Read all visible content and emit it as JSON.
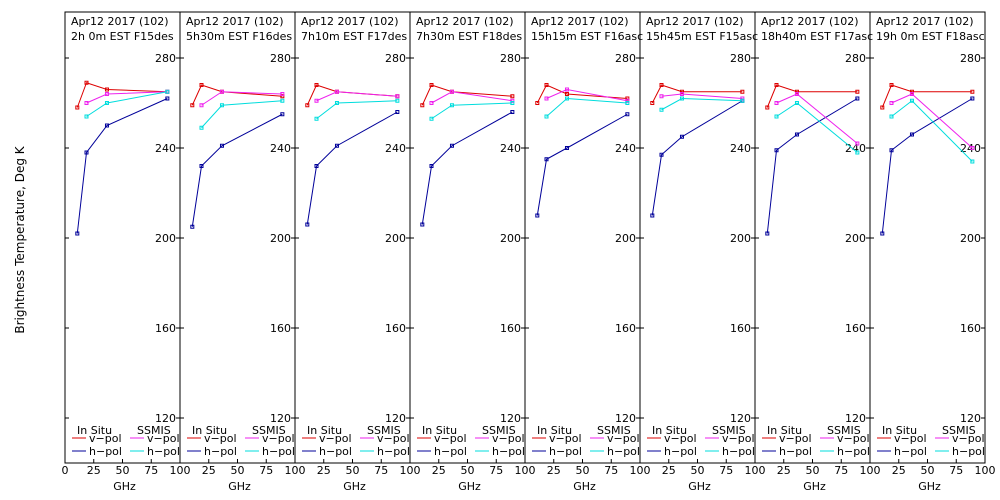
{
  "figure": {
    "ylabel": "Brightness Temperature, Deg K",
    "xlabel": "GHz"
  },
  "legend": {
    "in_situ": "In Situ",
    "ssmis": "SSMIS",
    "v_pol": "v−pol",
    "h_pol": "h−pol"
  },
  "colors": {
    "insitu_v": "#dd0000",
    "insitu_h": "#000099",
    "ssmis_v": "#ee22ee",
    "ssmis_h": "#00dddd"
  },
  "chart_data": [
    {
      "type": "line",
      "title": "Apr12 2017 (102)",
      "subtitle": "2h 0m  EST F15des",
      "xlabel": "GHz",
      "ylabel": "Brightness Temperature, Deg K",
      "xlim": [
        0,
        100
      ],
      "ylim": [
        110,
        290
      ],
      "xticks": [
        "0",
        "25",
        "50",
        "75",
        "100"
      ],
      "yticks": [
        "120",
        "160",
        "200",
        "240",
        "280"
      ],
      "x": [
        10.7,
        18.7,
        36.5,
        89
      ],
      "series": [
        {
          "name": "v-pol",
          "group": "In Situ",
          "values": [
            258,
            269,
            266,
            265
          ]
        },
        {
          "name": "h-pol",
          "group": "In Situ",
          "values": [
            202,
            238,
            250,
            262
          ]
        },
        {
          "name": "v-pol",
          "group": "SSMIS",
          "values": [
            null,
            260,
            264,
            265
          ]
        },
        {
          "name": "h-pol",
          "group": "SSMIS",
          "values": [
            null,
            254,
            260,
            265
          ]
        }
      ]
    },
    {
      "type": "line",
      "title": "Apr12 2017 (102)",
      "subtitle": "5h30m  EST F16des",
      "xlabel": "GHz",
      "ylabel": "Brightness Temperature, Deg K",
      "xlim": [
        0,
        100
      ],
      "ylim": [
        110,
        290
      ],
      "xticks": [
        "25",
        "50",
        "75",
        "100"
      ],
      "yticks": [
        "120",
        "160",
        "200",
        "240",
        "280"
      ],
      "x": [
        10.7,
        18.7,
        36.5,
        89
      ],
      "series": [
        {
          "name": "v-pol",
          "group": "In Situ",
          "values": [
            259,
            268,
            265,
            263
          ]
        },
        {
          "name": "h-pol",
          "group": "In Situ",
          "values": [
            205,
            232,
            241,
            255
          ]
        },
        {
          "name": "v-pol",
          "group": "SSMIS",
          "values": [
            null,
            259,
            265,
            264
          ]
        },
        {
          "name": "h-pol",
          "group": "SSMIS",
          "values": [
            null,
            249,
            259,
            261
          ]
        }
      ]
    },
    {
      "type": "line",
      "title": "Apr12 2017 (102)",
      "subtitle": "7h10m  EST F17des",
      "xlabel": "GHz",
      "ylabel": "Brightness Temperature, Deg K",
      "xlim": [
        0,
        100
      ],
      "ylim": [
        110,
        290
      ],
      "xticks": [
        "25",
        "50",
        "75",
        "100"
      ],
      "yticks": [
        "120",
        "160",
        "200",
        "240",
        "280"
      ],
      "x": [
        10.7,
        18.7,
        36.5,
        89
      ],
      "series": [
        {
          "name": "v-pol",
          "group": "In Situ",
          "values": [
            259,
            268,
            265,
            263
          ]
        },
        {
          "name": "h-pol",
          "group": "In Situ",
          "values": [
            206,
            232,
            241,
            256
          ]
        },
        {
          "name": "v-pol",
          "group": "SSMIS",
          "values": [
            null,
            261,
            265,
            263
          ]
        },
        {
          "name": "h-pol",
          "group": "SSMIS",
          "values": [
            null,
            253,
            260,
            261
          ]
        }
      ]
    },
    {
      "type": "line",
      "title": "Apr12 2017 (102)",
      "subtitle": "7h30m  EST F18des",
      "xlabel": "GHz",
      "ylabel": "Brightness Temperature, Deg K",
      "xlim": [
        0,
        100
      ],
      "ylim": [
        110,
        290
      ],
      "xticks": [
        "25",
        "50",
        "75",
        "100"
      ],
      "yticks": [
        "120",
        "160",
        "200",
        "240",
        "280"
      ],
      "x": [
        10.7,
        18.7,
        36.5,
        89
      ],
      "series": [
        {
          "name": "v-pol",
          "group": "In Situ",
          "values": [
            259,
            268,
            265,
            263
          ]
        },
        {
          "name": "h-pol",
          "group": "In Situ",
          "values": [
            206,
            232,
            241,
            256
          ]
        },
        {
          "name": "v-pol",
          "group": "SSMIS",
          "values": [
            null,
            260,
            265,
            261
          ]
        },
        {
          "name": "h-pol",
          "group": "SSMIS",
          "values": [
            null,
            253,
            259,
            260
          ]
        }
      ]
    },
    {
      "type": "line",
      "title": "Apr12 2017 (102)",
      "subtitle": "15h15m  EST F16asc",
      "xlabel": "GHz",
      "ylabel": "Brightness Temperature, Deg K",
      "xlim": [
        0,
        100
      ],
      "ylim": [
        110,
        290
      ],
      "xticks": [
        "25",
        "50",
        "75",
        "100"
      ],
      "yticks": [
        "120",
        "160",
        "200",
        "240",
        "280"
      ],
      "x": [
        10.7,
        18.7,
        36.5,
        89
      ],
      "series": [
        {
          "name": "v-pol",
          "group": "In Situ",
          "values": [
            260,
            268,
            264,
            262
          ]
        },
        {
          "name": "h-pol",
          "group": "In Situ",
          "values": [
            210,
            235,
            240,
            255
          ]
        },
        {
          "name": "v-pol",
          "group": "SSMIS",
          "values": [
            null,
            262,
            266,
            261
          ]
        },
        {
          "name": "h-pol",
          "group": "SSMIS",
          "values": [
            null,
            254,
            262,
            260
          ]
        }
      ]
    },
    {
      "type": "line",
      "title": "Apr12 2017 (102)",
      "subtitle": "15h45m  EST F15asc",
      "xlabel": "GHz",
      "ylabel": "Brightness Temperature, Deg K",
      "xlim": [
        0,
        100
      ],
      "ylim": [
        110,
        290
      ],
      "xticks": [
        "25",
        "50",
        "75",
        "100"
      ],
      "yticks": [
        "120",
        "160",
        "200",
        "240",
        "280"
      ],
      "x": [
        10.7,
        18.7,
        36.5,
        89
      ],
      "series": [
        {
          "name": "v-pol",
          "group": "In Situ",
          "values": [
            260,
            268,
            265,
            265
          ]
        },
        {
          "name": "h-pol",
          "group": "In Situ",
          "values": [
            210,
            237,
            245,
            261
          ]
        },
        {
          "name": "v-pol",
          "group": "SSMIS",
          "values": [
            null,
            263,
            264,
            262
          ]
        },
        {
          "name": "h-pol",
          "group": "SSMIS",
          "values": [
            null,
            257,
            262,
            261
          ]
        }
      ]
    },
    {
      "type": "line",
      "title": "Apr12 2017 (102)",
      "subtitle": "18h40m  EST F17asc",
      "xlabel": "GHz",
      "ylabel": "Brightness Temperature, Deg K",
      "xlim": [
        0,
        100
      ],
      "ylim": [
        110,
        290
      ],
      "xticks": [
        "25",
        "50",
        "75",
        "100"
      ],
      "yticks": [
        "120",
        "160",
        "200",
        "240",
        "280"
      ],
      "x": [
        10.7,
        18.7,
        36.5,
        89
      ],
      "series": [
        {
          "name": "v-pol",
          "group": "In Situ",
          "values": [
            258,
            268,
            265,
            265
          ]
        },
        {
          "name": "h-pol",
          "group": "In Situ",
          "values": [
            202,
            239,
            246,
            262
          ]
        },
        {
          "name": "v-pol",
          "group": "SSMIS",
          "values": [
            null,
            260,
            264,
            242
          ]
        },
        {
          "name": "h-pol",
          "group": "SSMIS",
          "values": [
            null,
            254,
            260,
            238
          ]
        }
      ]
    },
    {
      "type": "line",
      "title": "Apr12 2017 (102)",
      "subtitle": "19h 0m  EST F18asc",
      "xlabel": "GHz",
      "ylabel": "Brightness Temperature, Deg K",
      "xlim": [
        0,
        100
      ],
      "ylim": [
        110,
        290
      ],
      "xticks": [
        "25",
        "50",
        "75",
        "100"
      ],
      "yticks": [
        "120",
        "160",
        "200",
        "240",
        "280"
      ],
      "x": [
        10.7,
        18.7,
        36.5,
        89
      ],
      "series": [
        {
          "name": "v-pol",
          "group": "In Situ",
          "values": [
            258,
            268,
            265,
            265
          ]
        },
        {
          "name": "h-pol",
          "group": "In Situ",
          "values": [
            202,
            239,
            246,
            262
          ]
        },
        {
          "name": "v-pol",
          "group": "SSMIS",
          "values": [
            null,
            260,
            264,
            240
          ]
        },
        {
          "name": "h-pol",
          "group": "SSMIS",
          "values": [
            null,
            254,
            261,
            234
          ]
        }
      ]
    }
  ]
}
